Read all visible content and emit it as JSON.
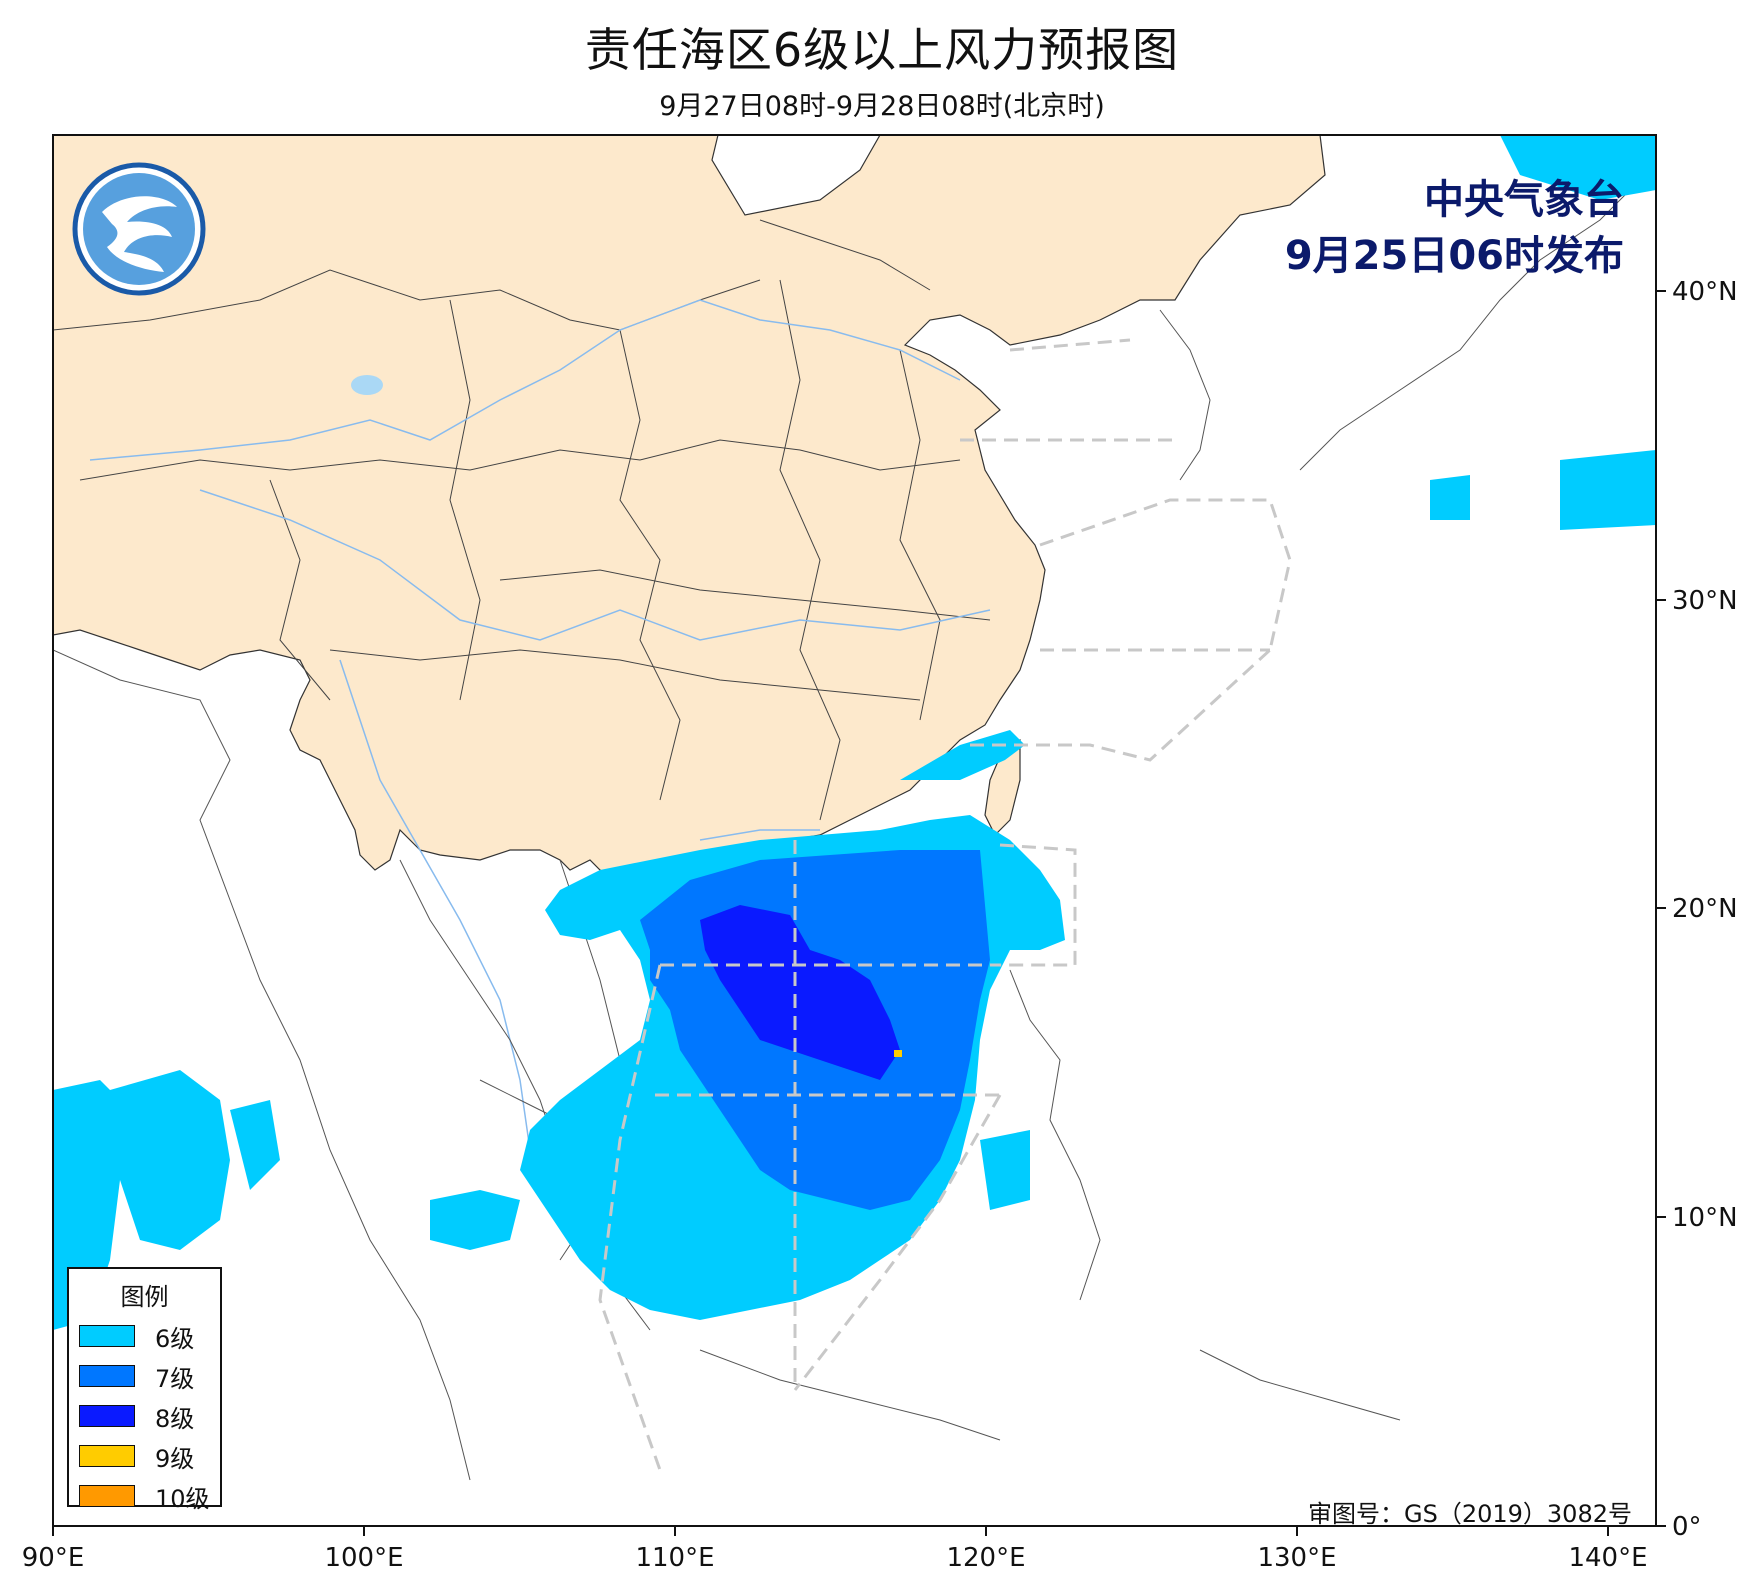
{
  "title": "责任海区6级以上风力预报图",
  "subtitle": "9月27日08时-9月28日08时(北京时)",
  "issuer": {
    "org": "中央气象台",
    "time": "9月25日06时发布"
  },
  "approval": "审图号：GS（2019）3082号",
  "axes": {
    "x_labels": [
      "90°E",
      "100°E",
      "110°E",
      "120°E",
      "130°E",
      "140°E"
    ],
    "y_labels": [
      "40°N",
      "30°N",
      "20°N",
      "10°N",
      "0°"
    ]
  },
  "legend": {
    "title": "图例",
    "items": [
      {
        "label": "6级",
        "color": "#00ccff"
      },
      {
        "label": "7级",
        "color": "#0077ff"
      },
      {
        "label": "8级",
        "color": "#0a1aff"
      },
      {
        "label": "9级",
        "color": "#ffcc00"
      },
      {
        "label": "10级",
        "color": "#ff9900"
      }
    ]
  },
  "colors": {
    "china_land": "#fde9cc",
    "frame": "#111111",
    "zone_lines": "#c8c8c8",
    "logo": "#1a5aa8"
  }
}
